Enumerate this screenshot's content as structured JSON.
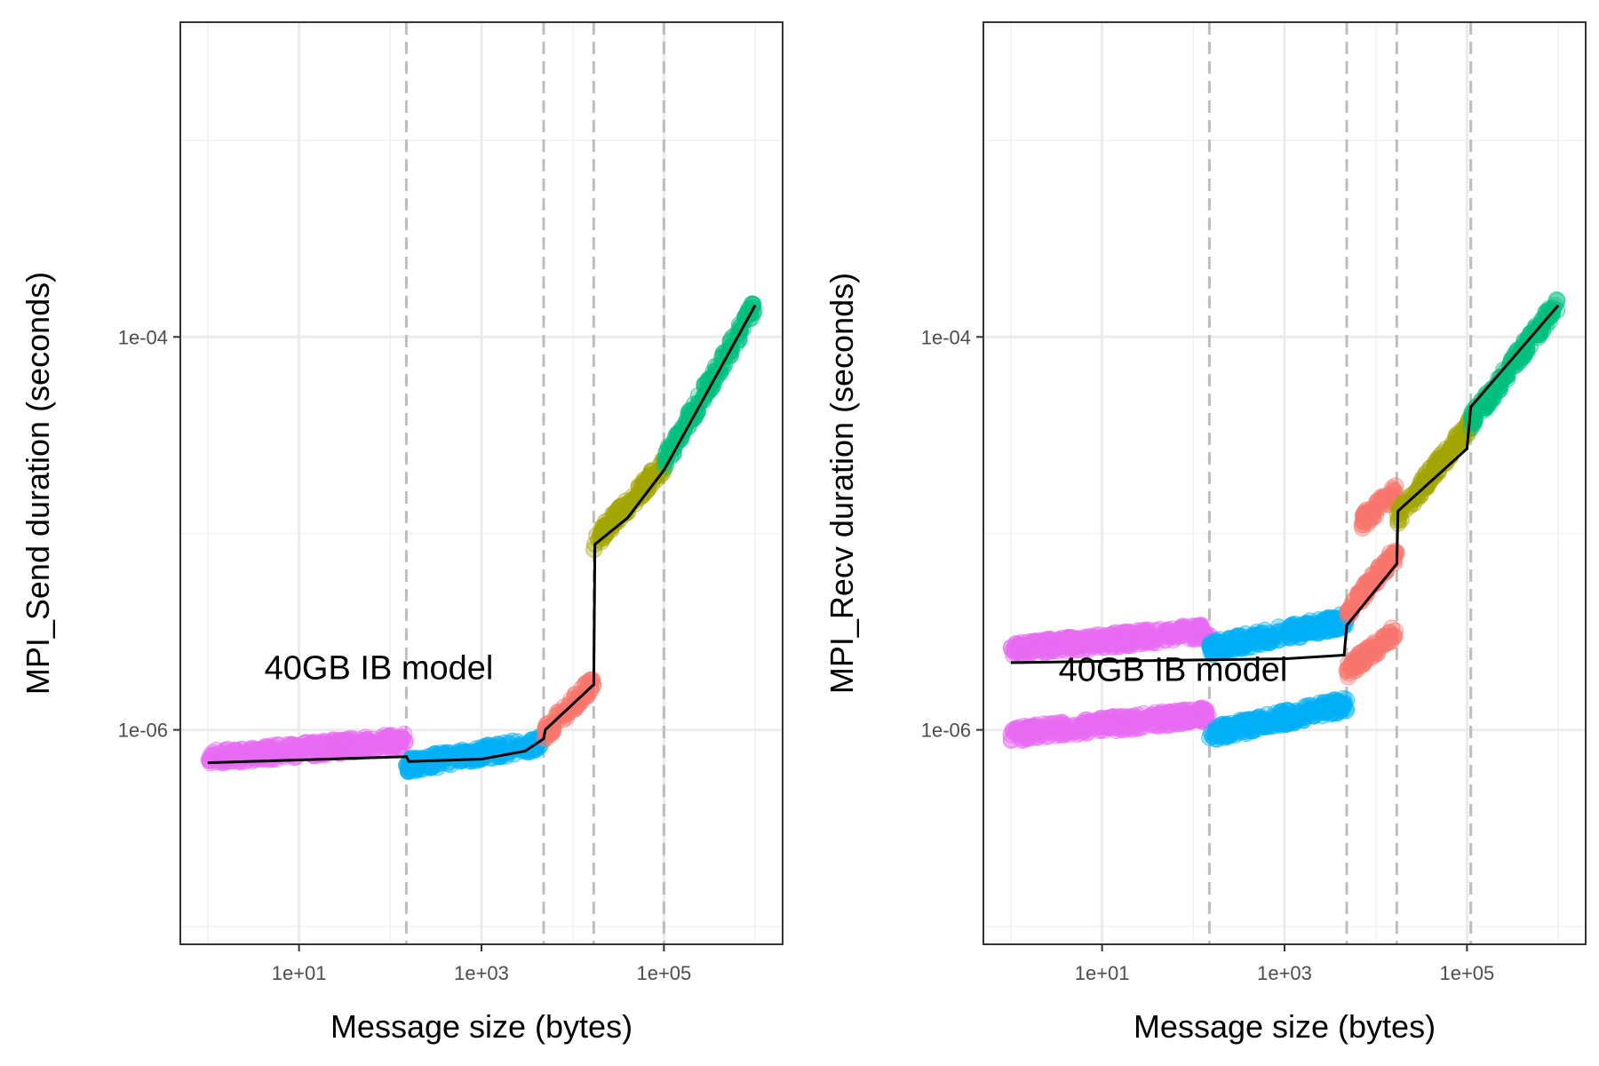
{
  "chart_data": [
    {
      "type": "scatter",
      "xlabel": "Message size (bytes)",
      "ylabel": "MPI_Send duration (seconds)",
      "x_scale": "log10",
      "y_scale": "log10",
      "x_range": [
        0.5,
        2000000
      ],
      "y_range": [
        8.1e-08,
        0.004
      ],
      "x_ticks": [
        {
          "value": 10,
          "label": "1e+01"
        },
        {
          "value": 1000,
          "label": "1e+03"
        },
        {
          "value": 100000,
          "label": "1e+05"
        }
      ],
      "y_ticks": [
        {
          "value": 1e-06,
          "label": "1e-06"
        },
        {
          "value": 0.0001,
          "label": "1e-04"
        }
      ],
      "grid": true,
      "breakpoints": [
        150,
        4800,
        17000,
        100000
      ],
      "annotation": {
        "text": "40GB IB model",
        "x": 75,
        "y": 2.1e-06
      },
      "series": [
        {
          "color": "#E76BF3",
          "bands": [
            {
              "x": [
                1,
                150
              ],
              "y": [
                7.2e-07,
                8.8e-07
              ]
            }
          ]
        },
        {
          "color": "#00B0F6",
          "bands": [
            {
              "x": [
                150,
                4800
              ],
              "y": [
                6.6e-07,
                8.6e-07
              ]
            }
          ]
        },
        {
          "color": "#F8766D",
          "bands": [
            {
              "x": [
                4800,
                17000
              ],
              "y": [
                9.5e-07,
                1.75e-06
              ]
            }
          ]
        },
        {
          "color": "#A3A500",
          "bands": [
            {
              "x": [
                17000,
                100000
              ],
              "y": [
                9e-06,
                2.25e-05
              ]
            }
          ]
        },
        {
          "color": "#00BF7D",
          "bands": [
            {
              "x": [
                100000,
                1000000
              ],
              "y": [
                2.3e-05,
                0.000145
              ]
            }
          ]
        }
      ],
      "model_line": [
        [
          1,
          6.8e-07
        ],
        [
          150,
          7.3e-07
        ],
        [
          160,
          6.9e-07
        ],
        [
          1000,
          7.1e-07
        ],
        [
          3000,
          7.8e-07
        ],
        [
          4800,
          9e-07
        ],
        [
          5000,
          1e-06
        ],
        [
          17000,
          1.7e-06
        ],
        [
          17500,
          8.8e-06
        ],
        [
          40000,
          1.2e-05
        ],
        [
          100000,
          2.1e-05
        ],
        [
          1000000,
          0.000145
        ]
      ]
    },
    {
      "type": "scatter",
      "xlabel": "Message size (bytes)",
      "ylabel": "MPI_Recv duration (seconds)",
      "x_scale": "log10",
      "y_scale": "log10",
      "x_range": [
        0.5,
        2000000
      ],
      "y_range": [
        8.1e-08,
        0.004
      ],
      "x_ticks": [
        {
          "value": 10,
          "label": "1e+01"
        },
        {
          "value": 1000,
          "label": "1e+03"
        },
        {
          "value": 100000,
          "label": "1e+05"
        }
      ],
      "y_ticks": [
        {
          "value": 1e-06,
          "label": "1e-06"
        },
        {
          "value": 0.0001,
          "label": "1e-04"
        }
      ],
      "grid": true,
      "breakpoints": [
        150,
        4800,
        17000,
        110000
      ],
      "annotation": {
        "text": "40GB IB model",
        "x": 60,
        "y": 2.05e-06
      },
      "series": [
        {
          "color": "#E76BF3",
          "bands": [
            {
              "x": [
                1,
                150
              ],
              "y": [
                9.5e-07,
                1.2e-06
              ]
            },
            {
              "x": [
                1,
                150
              ],
              "y": [
                2.55e-06,
                3.2e-06
              ]
            }
          ]
        },
        {
          "color": "#00B0F6",
          "bands": [
            {
              "x": [
                150,
                4800
              ],
              "y": [
                9.5e-07,
                1.35e-06
              ]
            },
            {
              "x": [
                150,
                4800
              ],
              "y": [
                2.6e-06,
                3.6e-06
              ]
            }
          ]
        },
        {
          "color": "#F8766D",
          "bands": [
            {
              "x": [
                4800,
                17000
              ],
              "y": [
                2e-06,
                3.2e-06
              ]
            },
            {
              "x": [
                4800,
                17000
              ],
              "y": [
                4e-06,
                8e-06
              ]
            },
            {
              "x": [
                7000,
                17000
              ],
              "y": [
                1.15e-05,
                1.65e-05
              ]
            }
          ]
        },
        {
          "color": "#A3A500",
          "bands": [
            {
              "x": [
                17000,
                110000
              ],
              "y": [
                1.2e-05,
                3.6e-05
              ]
            }
          ]
        },
        {
          "color": "#00BF7D",
          "bands": [
            {
              "x": [
                110000,
                1000000
              ],
              "y": [
                3.7e-05,
                0.00015
              ]
            }
          ]
        }
      ],
      "model_line": [
        [
          1,
          2.2e-06
        ],
        [
          1000,
          2.3e-06
        ],
        [
          4500,
          2.4e-06
        ],
        [
          4800,
          3.4e-06
        ],
        [
          17000,
          7e-06
        ],
        [
          17500,
          1.3e-05
        ],
        [
          100000,
          2.7e-05
        ],
        [
          110000,
          4.4e-05
        ],
        [
          1000000,
          0.000145
        ]
      ]
    }
  ]
}
